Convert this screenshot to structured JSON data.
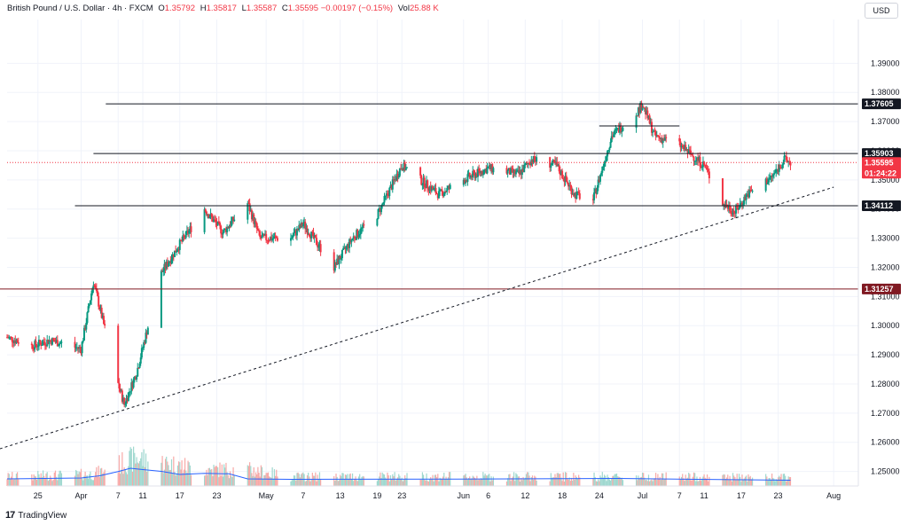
{
  "legend": {
    "title": "British Pound / U.S. Dollar · 4h · FXCM",
    "o_label": "O",
    "o_value": "1.35792",
    "h_label": "H",
    "h_value": "1.35817",
    "l_label": "L",
    "l_value": "1.35587",
    "c_label": "C",
    "c_value": "1.35595",
    "change": "−0.00197 (−0.15%)",
    "vol_label": "Vol",
    "vol_value": "25.88 K"
  },
  "currency": "USD",
  "brand": "TradingView",
  "colors": {
    "up": "#089981",
    "down": "#f23645",
    "volume_up": "#9fd8cf",
    "volume_down": "#f7a9a7",
    "volume_ma": "#2962ff",
    "level_line": "#131722",
    "support_line": "#801922",
    "price_line": "#f23645"
  },
  "chart_data": {
    "type": "candlestick",
    "ylim": [
      1.245,
      1.405
    ],
    "y_ticks": [
      "1.39000",
      "1.38000",
      "1.37000",
      "1.36000",
      "1.35000",
      "1.34000",
      "1.33000",
      "1.32000",
      "1.31000",
      "1.30000",
      "1.29000",
      "1.28000",
      "1.27000",
      "1.26000",
      "1.25000"
    ],
    "y_tick_values": [
      1.39,
      1.38,
      1.37,
      1.36,
      1.35,
      1.34,
      1.33,
      1.32,
      1.31,
      1.3,
      1.29,
      1.28,
      1.27,
      1.26,
      1.25
    ],
    "x_ticks": [
      {
        "label": "25",
        "date": "2025-03-25"
      },
      {
        "label": "Apr",
        "date": "2025-04-01"
      },
      {
        "label": "7",
        "date": "2025-04-07"
      },
      {
        "label": "11",
        "date": "2025-04-11"
      },
      {
        "label": "17",
        "date": "2025-04-17"
      },
      {
        "label": "23",
        "date": "2025-04-23"
      },
      {
        "label": "May",
        "date": "2025-05-01"
      },
      {
        "label": "7",
        "date": "2025-05-07"
      },
      {
        "label": "13",
        "date": "2025-05-13"
      },
      {
        "label": "19",
        "date": "2025-05-19"
      },
      {
        "label": "23",
        "date": "2025-05-23"
      },
      {
        "label": "Jun",
        "date": "2025-06-02"
      },
      {
        "label": "6",
        "date": "2025-06-06"
      },
      {
        "label": "12",
        "date": "2025-06-12"
      },
      {
        "label": "18",
        "date": "2025-06-18"
      },
      {
        "label": "24",
        "date": "2025-06-24"
      },
      {
        "label": "Jul",
        "date": "2025-07-01"
      },
      {
        "label": "7",
        "date": "2025-07-07"
      },
      {
        "label": "11",
        "date": "2025-07-11"
      },
      {
        "label": "17",
        "date": "2025-07-17"
      },
      {
        "label": "23",
        "date": "2025-07-23"
      },
      {
        "label": "Aug",
        "date": "2025-08-01"
      }
    ],
    "close_path": [
      {
        "date": "2025-03-20",
        "close": 1.296
      },
      {
        "date": "2025-03-24",
        "close": 1.293
      },
      {
        "date": "2025-03-27",
        "close": 1.295
      },
      {
        "date": "2025-04-01",
        "close": 1.292
      },
      {
        "date": "2025-04-03",
        "close": 1.315
      },
      {
        "date": "2025-04-07",
        "close": 1.28
      },
      {
        "date": "2025-04-08",
        "close": 1.273
      },
      {
        "date": "2025-04-10",
        "close": 1.284
      },
      {
        "date": "2025-04-14",
        "close": 1.318
      },
      {
        "date": "2025-04-17",
        "close": 1.328
      },
      {
        "date": "2025-04-21",
        "close": 1.34
      },
      {
        "date": "2025-04-24",
        "close": 1.332
      },
      {
        "date": "2025-04-28",
        "close": 1.342
      },
      {
        "date": "2025-04-30",
        "close": 1.33
      },
      {
        "date": "2025-05-05",
        "close": 1.33
      },
      {
        "date": "2025-05-07",
        "close": 1.335
      },
      {
        "date": "2025-05-12",
        "close": 1.32
      },
      {
        "date": "2025-05-15",
        "close": 1.33
      },
      {
        "date": "2025-05-19",
        "close": 1.338
      },
      {
        "date": "2025-05-23",
        "close": 1.355
      },
      {
        "date": "2025-05-29",
        "close": 1.345
      },
      {
        "date": "2025-06-02",
        "close": 1.35
      },
      {
        "date": "2025-06-06",
        "close": 1.354
      },
      {
        "date": "2025-06-11",
        "close": 1.352
      },
      {
        "date": "2025-06-13",
        "close": 1.357
      },
      {
        "date": "2025-06-17",
        "close": 1.355
      },
      {
        "date": "2025-06-20",
        "close": 1.345
      },
      {
        "date": "2025-06-23",
        "close": 1.343
      },
      {
        "date": "2025-06-26",
        "close": 1.365
      },
      {
        "date": "2025-06-30",
        "close": 1.373
      },
      {
        "date": "2025-07-01",
        "close": 1.376
      },
      {
        "date": "2025-07-03",
        "close": 1.365
      },
      {
        "date": "2025-07-07",
        "close": 1.362
      },
      {
        "date": "2025-07-11",
        "close": 1.355
      },
      {
        "date": "2025-07-14",
        "close": 1.342
      },
      {
        "date": "2025-07-16",
        "close": 1.339
      },
      {
        "date": "2025-07-18",
        "close": 1.345
      },
      {
        "date": "2025-07-22",
        "close": 1.351
      },
      {
        "date": "2025-07-24",
        "close": 1.357
      },
      {
        "date": "2025-07-25",
        "close": 1.35595
      }
    ],
    "last_price": 1.35595,
    "last_price_label": "1.35595",
    "countdown_label": "01:24:22",
    "levels": [
      {
        "value": 1.37605,
        "label": "1.37605",
        "from_date": "2025-04-05",
        "type": "resistance"
      },
      {
        "value": 1.35903,
        "label": "1.35903",
        "from_date": "2025-04-03",
        "type": "resistance"
      },
      {
        "value": 1.34112,
        "label": "1.34112",
        "from_date": "2025-03-31",
        "type": "support"
      },
      {
        "value": 1.31257,
        "label": "1.31257",
        "from_date": "2025-03-18",
        "type": "key-support"
      }
    ],
    "short_lines": [
      {
        "value": 1.3685,
        "from_date": "2025-06-24",
        "to_date": "2025-07-07"
      }
    ],
    "trendline": {
      "from": {
        "date": "2025-03-18",
        "value": 1.2572
      },
      "to": {
        "date": "2025-08-01",
        "value": 1.3475
      },
      "style": "dashed"
    },
    "volume_max": 28,
    "volume_path": [
      {
        "date": "2025-03-20",
        "value": 4
      },
      {
        "date": "2025-04-03",
        "value": 5
      },
      {
        "date": "2025-04-07",
        "value": 9
      },
      {
        "date": "2025-04-10",
        "value": 12
      },
      {
        "date": "2025-04-14",
        "value": 10
      },
      {
        "date": "2025-04-21",
        "value": 7
      },
      {
        "date": "2025-04-28",
        "value": 7
      },
      {
        "date": "2025-05-05",
        "value": 4
      },
      {
        "date": "2025-06-01",
        "value": 4
      },
      {
        "date": "2025-07-01",
        "value": 4
      },
      {
        "date": "2025-07-25",
        "value": 3.5
      }
    ],
    "volume_ma": [
      {
        "date": "2025-03-20",
        "value": 3.2
      },
      {
        "date": "2025-04-01",
        "value": 3.6
      },
      {
        "date": "2025-04-04",
        "value": 4.6
      },
      {
        "date": "2025-04-07",
        "value": 6.5
      },
      {
        "date": "2025-04-09",
        "value": 8.0
      },
      {
        "date": "2025-04-11",
        "value": 7.4
      },
      {
        "date": "2025-04-14",
        "value": 6.6
      },
      {
        "date": "2025-04-17",
        "value": 5.2
      },
      {
        "date": "2025-04-21",
        "value": 5.7
      },
      {
        "date": "2025-04-25",
        "value": 5.5
      },
      {
        "date": "2025-04-28",
        "value": 3.2
      },
      {
        "date": "2025-05-05",
        "value": 3.0
      },
      {
        "date": "2025-06-01",
        "value": 3.1
      },
      {
        "date": "2025-06-27",
        "value": 3.4
      },
      {
        "date": "2025-07-10",
        "value": 3.0
      },
      {
        "date": "2025-07-25",
        "value": 2.6
      }
    ]
  }
}
